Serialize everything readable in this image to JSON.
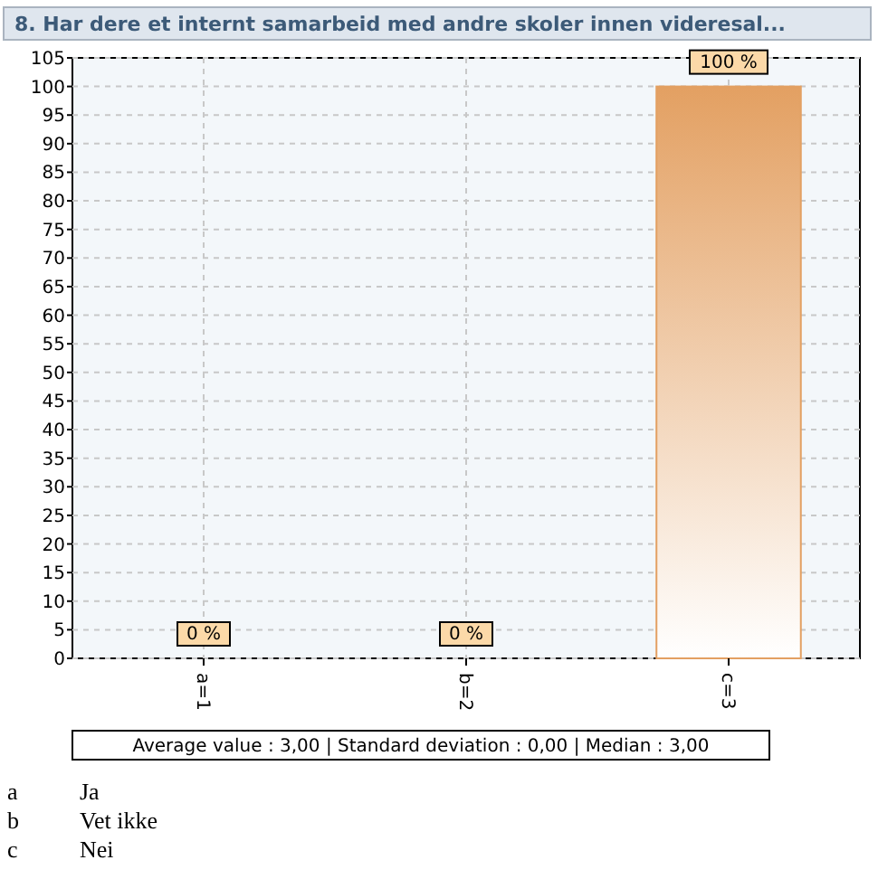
{
  "chart_data": {
    "type": "bar",
    "title": "8. Har dere et internt samarbeid med andre skoler innen videresal...",
    "categories": [
      "a=1",
      "b=2",
      "c=3"
    ],
    "values": [
      0,
      0,
      100
    ],
    "value_labels": [
      "0 %",
      "0 %",
      "100 %"
    ],
    "color": "#e3a062",
    "ylim": [
      0,
      105
    ],
    "yticks": [
      0,
      5,
      10,
      15,
      20,
      25,
      30,
      35,
      40,
      45,
      50,
      55,
      60,
      65,
      70,
      75,
      80,
      85,
      90,
      95,
      100,
      105
    ],
    "grid": true,
    "annotations": [
      "Average value : 3,00 | Standard deviation : 0,00 | Median : 3,00",
      "a",
      "Ja",
      "b",
      "Vet ikke",
      "c",
      "Nei"
    ]
  }
}
